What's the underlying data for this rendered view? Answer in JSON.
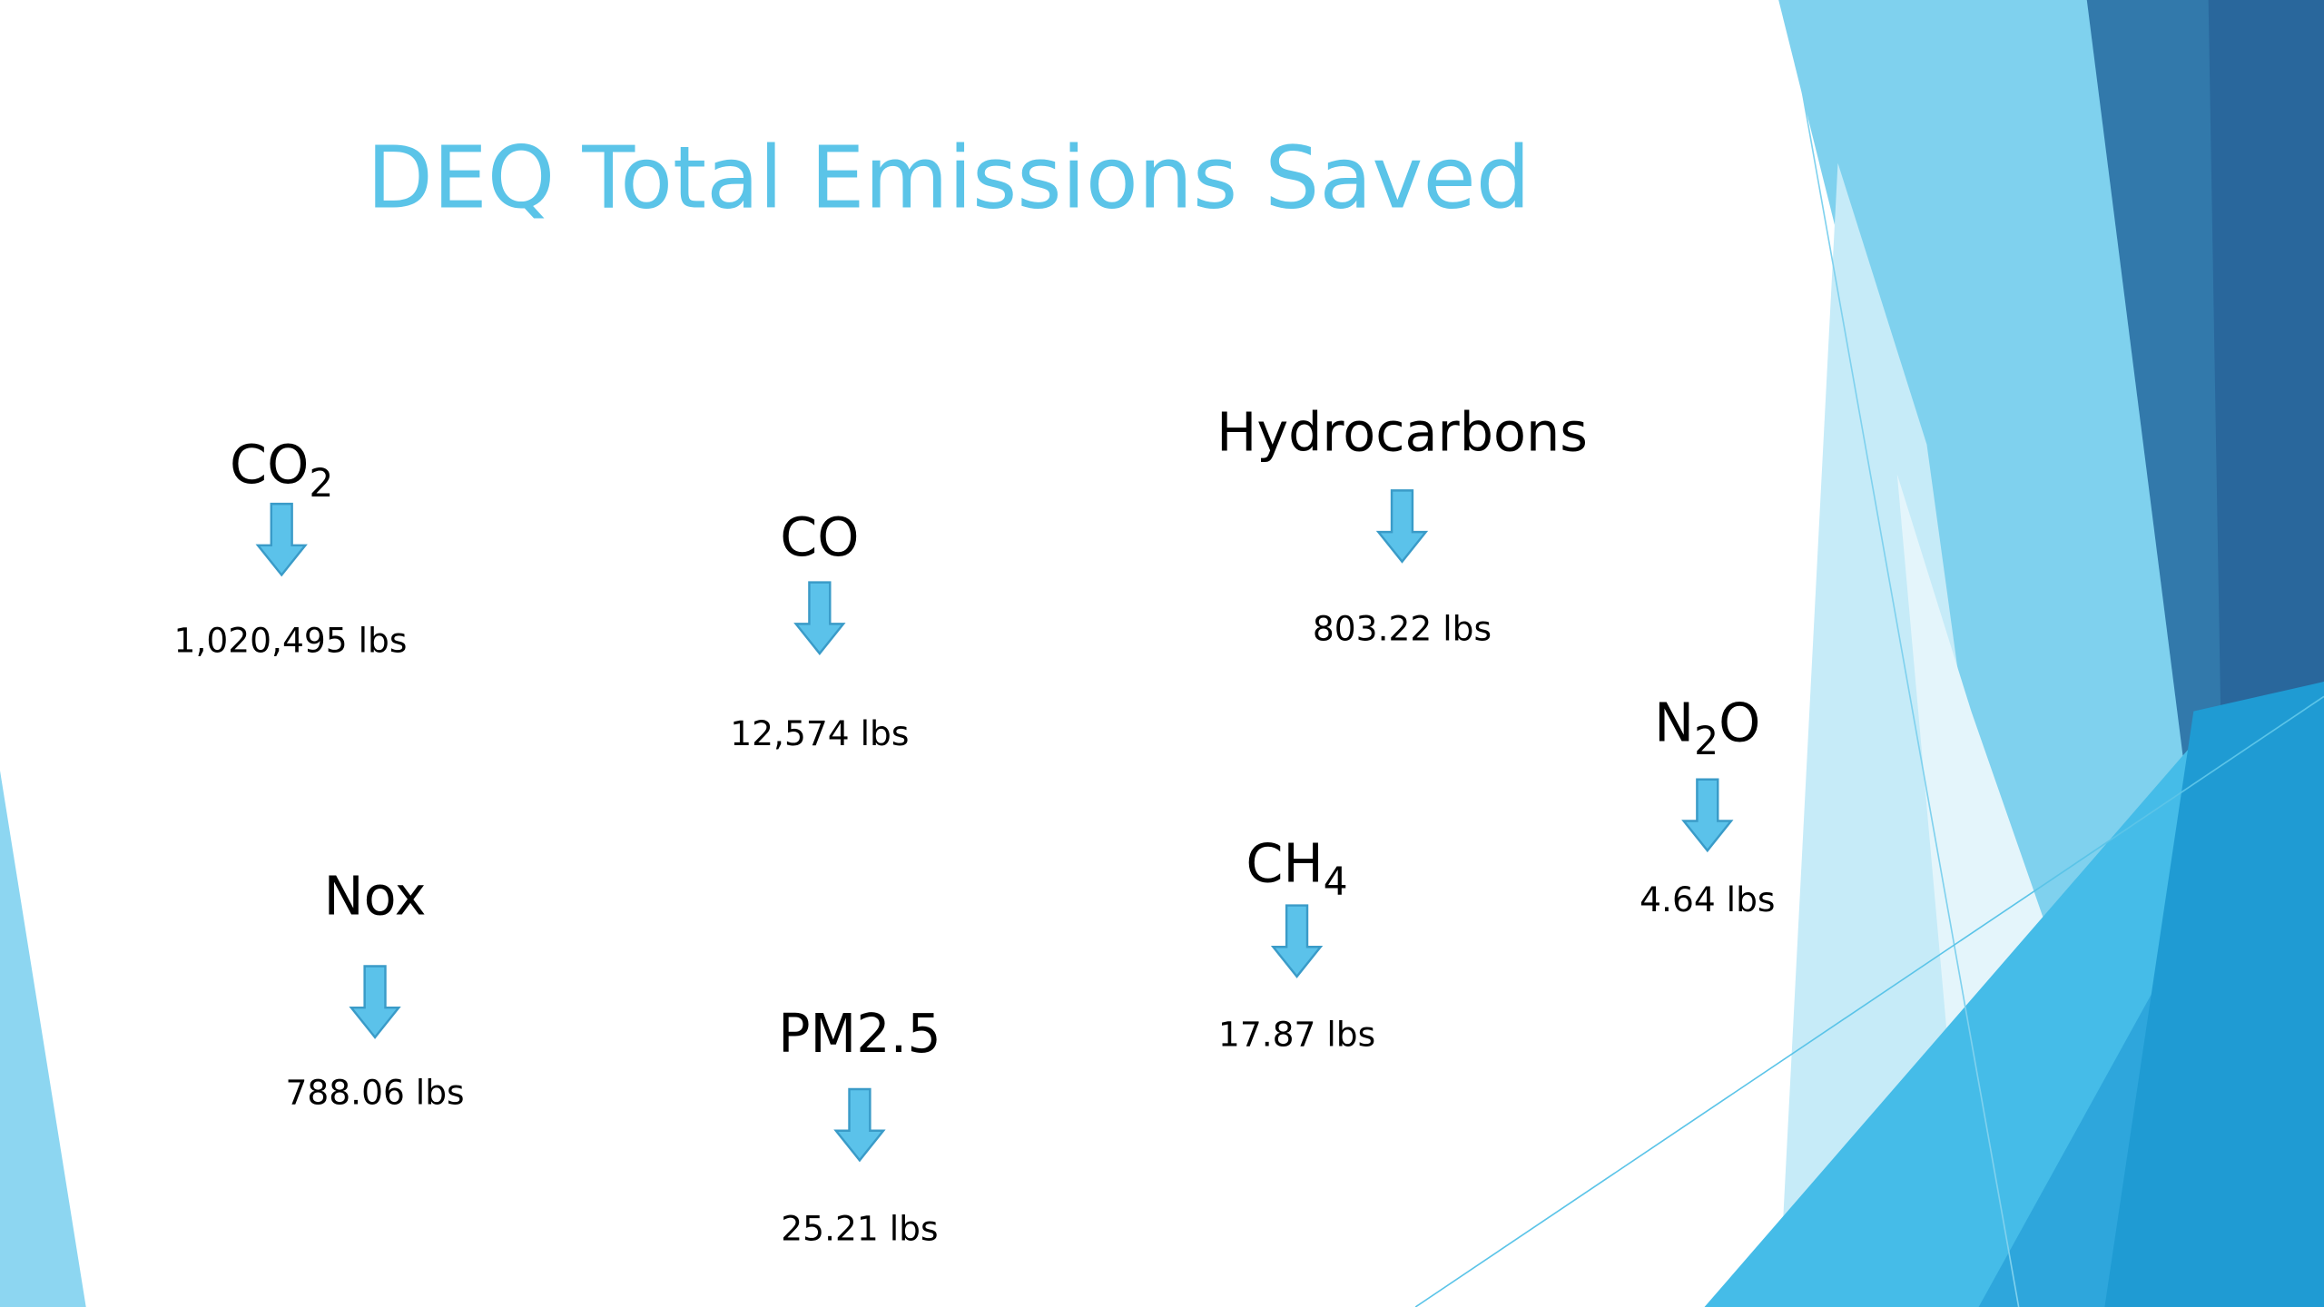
{
  "title": "DEQ Total Emissions Saved",
  "items": [
    {
      "label": {
        "base": "CO",
        "sub": "2"
      },
      "value": "1,020,495 lbs"
    },
    {
      "label": {
        "base": "CO"
      },
      "value": "12,574 lbs"
    },
    {
      "label": {
        "base": "Hydrocarbons"
      },
      "value": "803.22 lbs"
    },
    {
      "label": {
        "base": "N",
        "sub": "2",
        "rest": "O"
      },
      "value": "4.64 lbs"
    },
    {
      "label": {
        "base": "Nox"
      },
      "value": "788.06 lbs"
    },
    {
      "label": {
        "base": "PM2.5"
      },
      "value": "25.21 lbs"
    },
    {
      "label": {
        "base": "CH",
        "sub": "4"
      },
      "value": "17.87 lbs"
    }
  ]
}
